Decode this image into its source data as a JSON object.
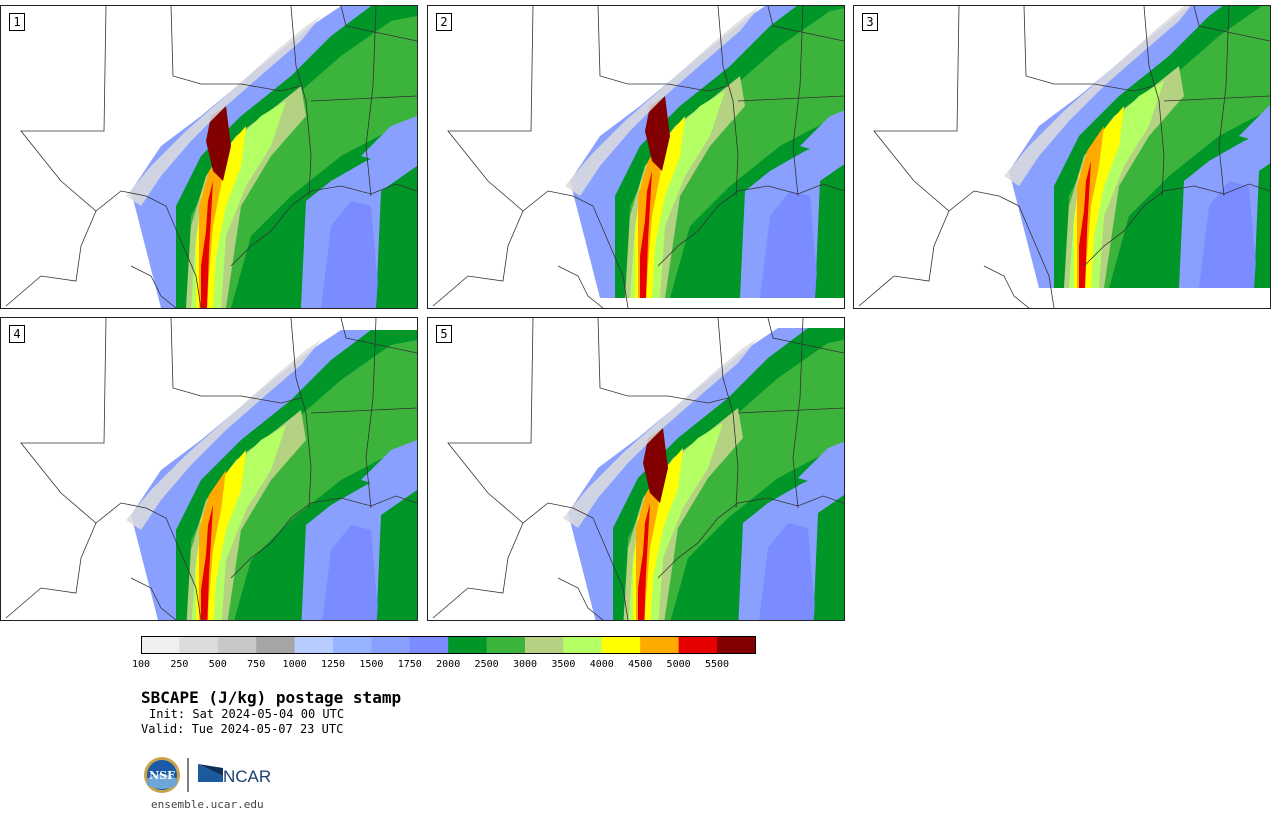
{
  "colors": {
    "land_background": "#ffffff",
    "map_lines": "#333333",
    "colorbar": [
      "#f0f0f0",
      "#dcdcdc",
      "#c8c8c8",
      "#a5a5a5",
      "#b9ccff",
      "#96b4ff",
      "#8aa0ff",
      "#7a8cff",
      "#009628",
      "#3cb43c",
      "#b4d282",
      "#b4ff64",
      "#ffff00",
      "#ffaa00",
      "#e60000",
      "#820000"
    ]
  },
  "panels": [
    {
      "label": "1"
    },
    {
      "label": "2"
    },
    {
      "label": "3"
    },
    {
      "label": "4"
    },
    {
      "label": "5"
    }
  ],
  "colorbar": {
    "ticks": [
      "100",
      "250",
      "500",
      "750",
      "1000",
      "1250",
      "1500",
      "1750",
      "2000",
      "2500",
      "3000",
      "3500",
      "4000",
      "4500",
      "5000",
      "5500"
    ]
  },
  "title": "SBCAPE (J/kg) postage stamp",
  "init": "Init: Sat 2024-05-04 00 UTC",
  "valid": "Valid: Tue 2024-05-07 23 UTC",
  "logos": {
    "nsf": "NSF",
    "ncar": "NCAR"
  },
  "site": "ensemble.ucar.edu"
}
